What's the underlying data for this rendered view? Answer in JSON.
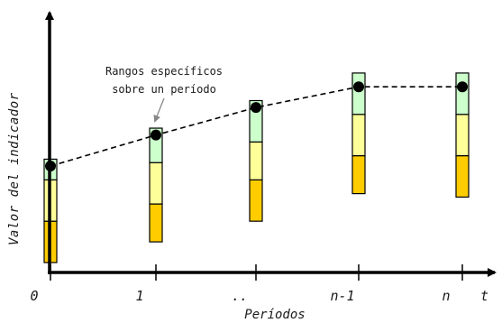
{
  "chart_data": {
    "type": "line",
    "xlabel": "Períodos",
    "ylabel": "Valor del indicador",
    "y_axis_end_label": "",
    "x_axis_end_label": "t",
    "categories": [
      "0",
      "1",
      "..",
      "n-1",
      "n"
    ],
    "series": [
      {
        "values": [
          0.28,
          0.37,
          0.45,
          0.51,
          0.51
        ]
      }
    ],
    "ranges": [
      {
        "bands": [
          [
            0.0,
            0.12
          ],
          [
            0.12,
            0.24
          ],
          [
            0.24,
            0.3
          ]
        ]
      },
      {
        "bands": [
          [
            0.06,
            0.17
          ],
          [
            0.17,
            0.29
          ],
          [
            0.29,
            0.39
          ]
        ]
      },
      {
        "bands": [
          [
            0.12,
            0.24
          ],
          [
            0.24,
            0.35
          ],
          [
            0.35,
            0.47
          ]
        ]
      },
      {
        "bands": [
          [
            0.2,
            0.31
          ],
          [
            0.31,
            0.43
          ],
          [
            0.43,
            0.55
          ]
        ]
      },
      {
        "bands": [
          [
            0.19,
            0.31
          ],
          [
            0.31,
            0.43
          ],
          [
            0.43,
            0.55
          ]
        ]
      }
    ],
    "band_colors": [
      "#ffcc00",
      "#ffff99",
      "#ccffcc"
    ],
    "annotation": {
      "lines": [
        "Rangos específicos",
        "sobre un período"
      ],
      "target_index": 1
    },
    "ylim": [
      0,
      0.72
    ],
    "grid": false
  }
}
